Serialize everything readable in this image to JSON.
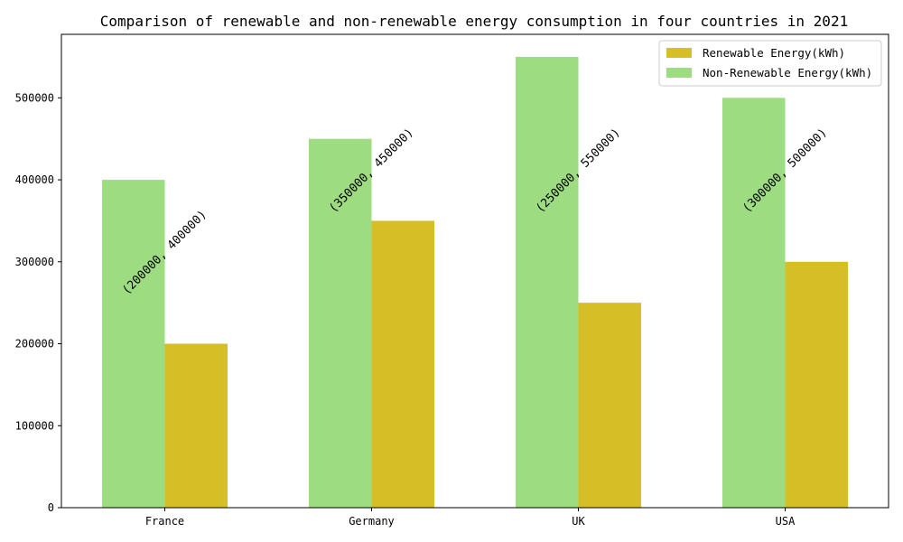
{
  "chart_data": {
    "type": "bar",
    "title": "Comparison of renewable and non-renewable energy consumption in four countries in 2021",
    "xlabel": "",
    "ylabel": "",
    "categories": [
      "France",
      "Germany",
      "UK",
      "USA"
    ],
    "series": [
      {
        "name": "Non-Renewable Energy(kWh)",
        "values": [
          400000,
          450000,
          550000,
          500000
        ],
        "color": "#9edc82"
      },
      {
        "name": "Renewable Energy(kWh)",
        "values": [
          200000,
          350000,
          250000,
          300000
        ],
        "color": "#d6bf26"
      }
    ],
    "legend_order": [
      1,
      0
    ],
    "annotations": [
      "(200000, 400000)",
      "(350000, 450000)",
      "(250000, 550000)",
      "(300000, 500000)"
    ],
    "ylim": [
      0,
      577500
    ],
    "yticks": [
      0,
      100000,
      200000,
      300000,
      400000,
      500000
    ],
    "ytick_labels": [
      "0",
      "100000",
      "200000",
      "300000",
      "400000",
      "500000"
    ],
    "grid": false,
    "legend_position": "top-right"
  }
}
